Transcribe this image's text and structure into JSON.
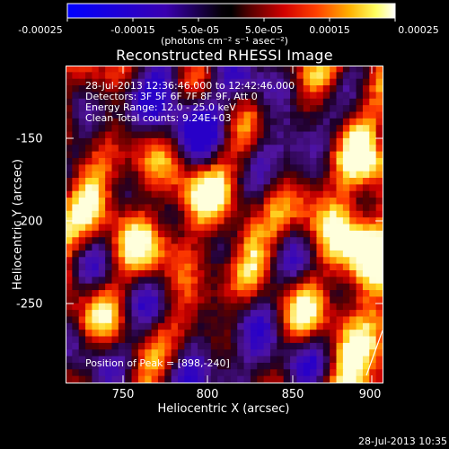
{
  "colorbar": {
    "ticks": [
      "-0.00025",
      "-0.00015",
      "-5.0e-05",
      "5.0e-05",
      "0.00015",
      "0.00025"
    ],
    "units": "(photons cm⁻² s⁻¹ asec⁻²)"
  },
  "image": {
    "title": "Reconstructed RHESSI Image",
    "info_lines": [
      "28-Jul-2013 12:36:46.000 to 12:42:46.000",
      "Detectors: 3F 5F 6F 7F 8F 9F, Att 0",
      "Energy Range: 12.0 - 25.0 keV",
      "Clean     Total counts: 9.24E+03"
    ],
    "peak_label": "Position of Peak = [898,-240]"
  },
  "axes": {
    "xlabel": "Heliocentric X (arcsec)",
    "ylabel": "Heliocentric Y (arcsec)",
    "xticks": [
      "750",
      "800",
      "850",
      "900"
    ],
    "yticks": [
      "-150",
      "-200",
      "-250"
    ]
  },
  "footer": {
    "timestamp": "28-Jul-2013 10:35"
  },
  "colors": {
    "negative": "#0000ff",
    "zero": "#000000",
    "positive_mid": "#ff3000",
    "positive_high": "#ffffff"
  }
}
